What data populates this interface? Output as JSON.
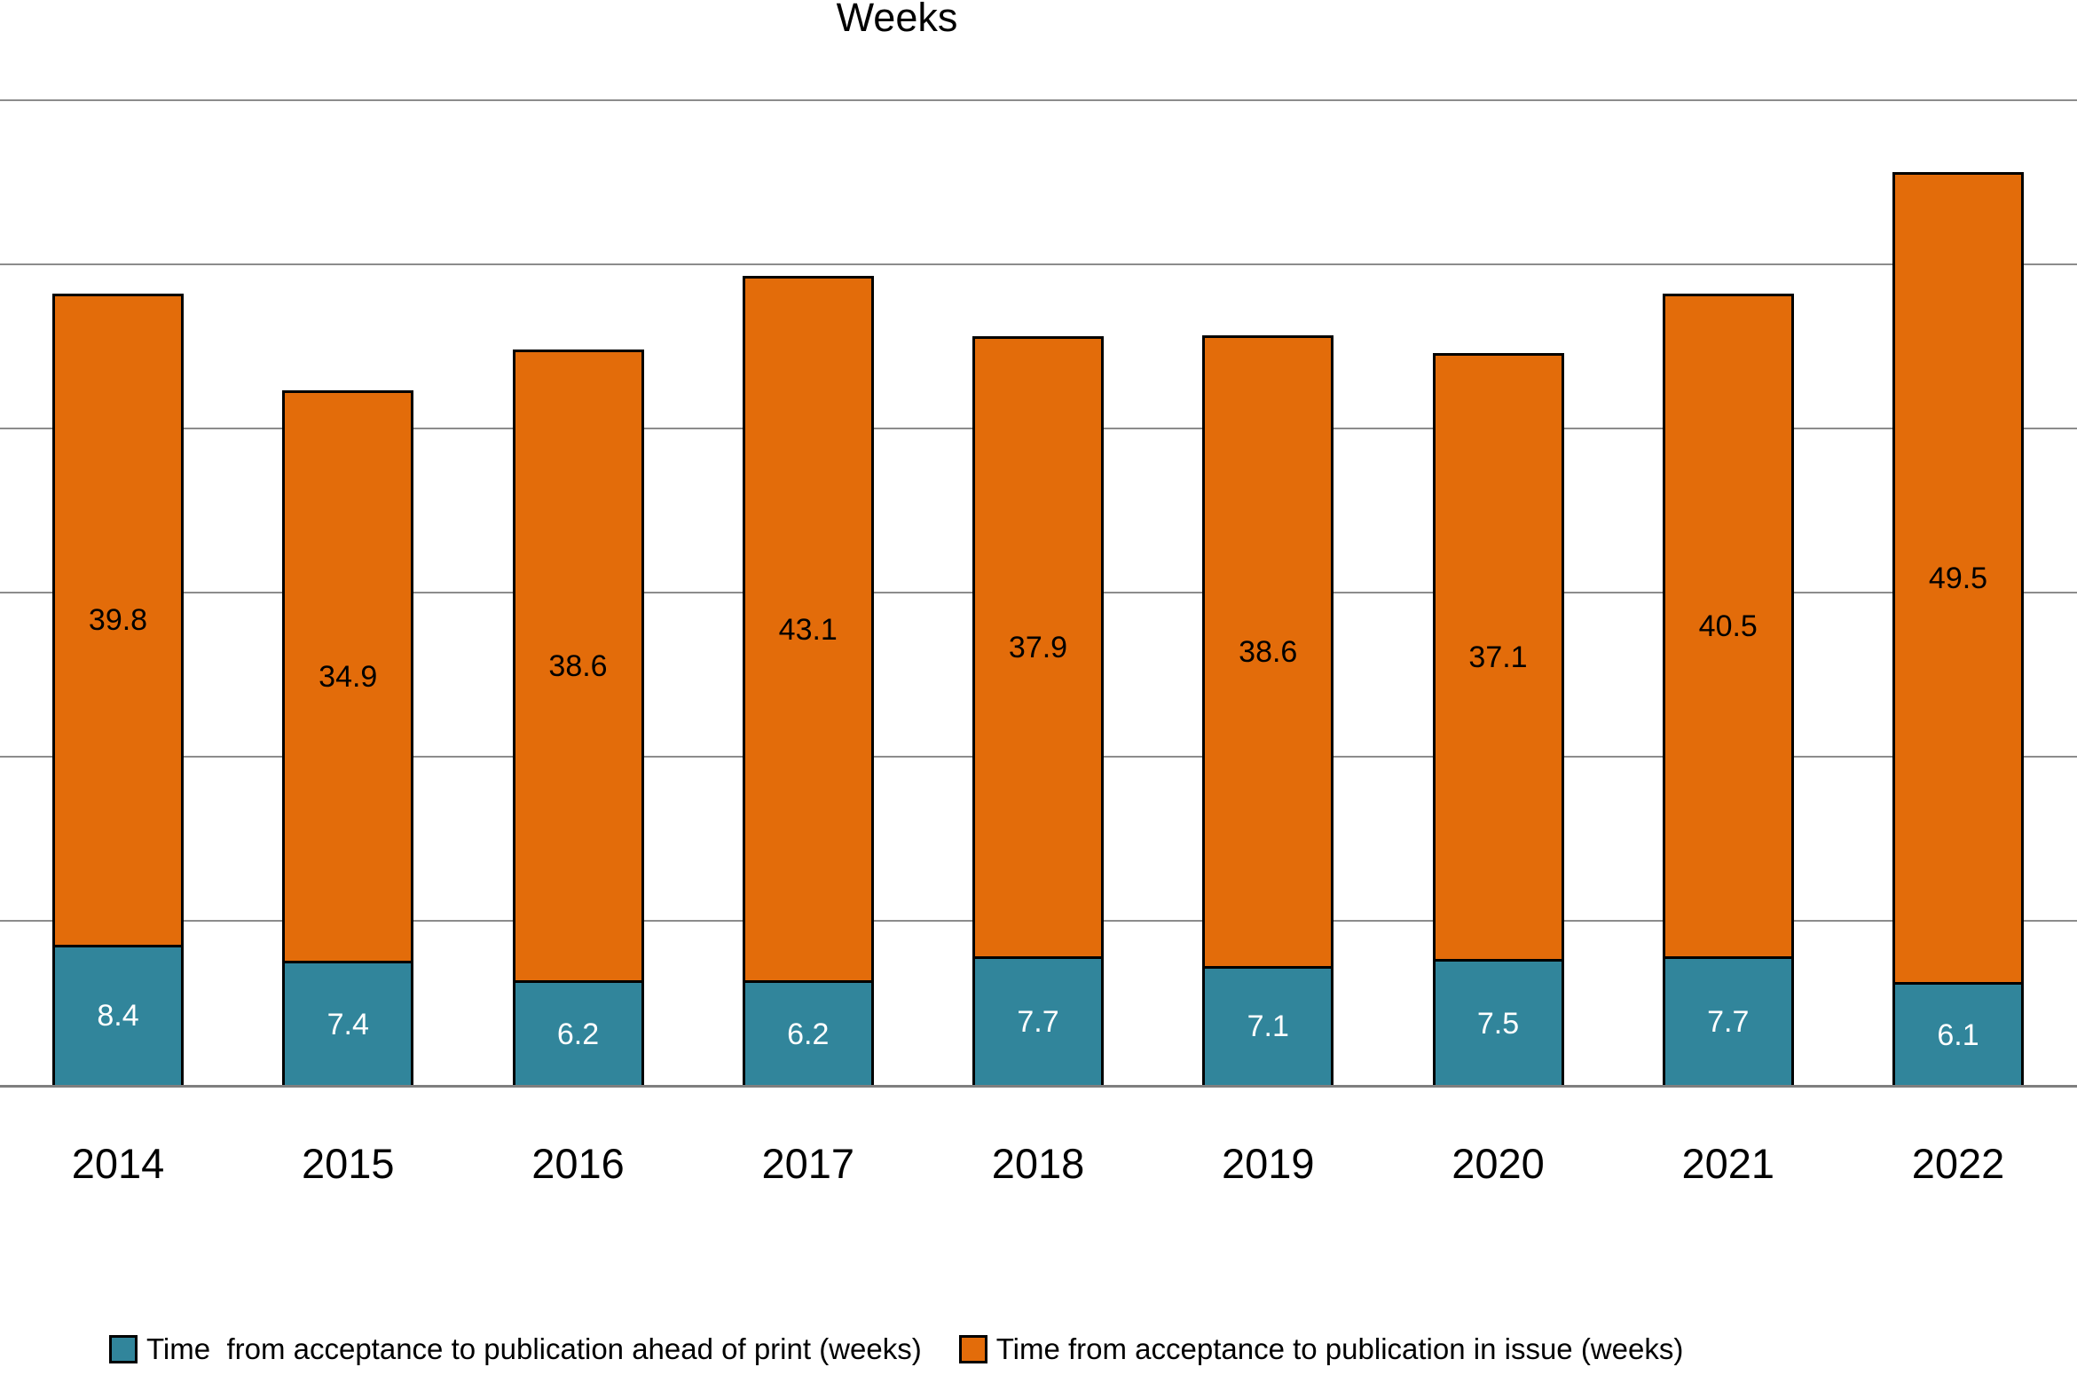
{
  "chart_data": {
    "type": "bar",
    "stacked": true,
    "title": "Weeks",
    "categories": [
      "2014",
      "2015",
      "2016",
      "2017",
      "2018",
      "2019",
      "2020",
      "2021",
      "2022"
    ],
    "series": [
      {
        "name": "Time  from acceptance to publication ahead of print (weeks)",
        "color": "#31859B",
        "label_color": "#FFFFFF",
        "values": [
          8.4,
          7.4,
          6.2,
          6.2,
          7.7,
          7.1,
          7.5,
          7.7,
          6.1
        ]
      },
      {
        "name": "Time from acceptance to publication in issue (weeks)",
        "color": "#E36C0A",
        "label_color": "#000000",
        "values": [
          39.8,
          34.9,
          38.6,
          43.1,
          37.9,
          38.6,
          37.1,
          40.5,
          49.5
        ]
      }
    ],
    "xlabel": "",
    "ylabel": "",
    "ylim": [
      0,
      60
    ],
    "gridline_step": 10,
    "grid": true,
    "y_axis_tick_labels_visible": false,
    "data_labels_visible": true,
    "legend_position": "bottom",
    "bar_border_color": "#000000",
    "gridline_color": "#8C8C8C",
    "axis_line_color": "#7F7F7F",
    "background_color": "#FFFFFF"
  }
}
